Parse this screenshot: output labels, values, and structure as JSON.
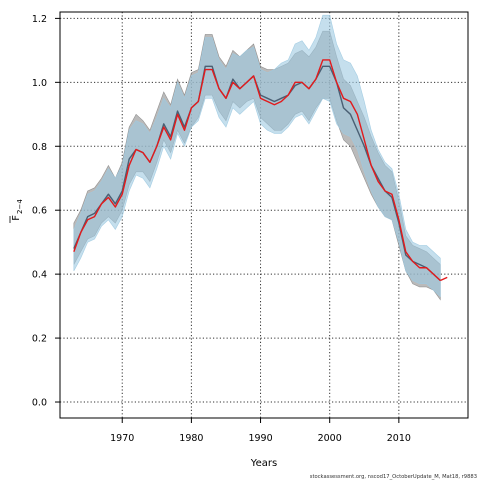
{
  "chart_data": {
    "type": "line",
    "xlabel": "Years",
    "ylabel_main": "F",
    "ylabel_sub": "2−4",
    "xlim": [
      1961,
      2020
    ],
    "ylim": [
      -0.05,
      1.22
    ],
    "grid": true,
    "x_ticks": [
      1970,
      1980,
      1990,
      2000,
      2010
    ],
    "x_tick_labels": [
      "1970",
      "1980",
      "1990",
      "2000",
      "2010"
    ],
    "y_ticks": [
      0.0,
      0.2,
      0.4,
      0.6,
      0.8,
      1.0,
      1.2
    ],
    "y_tick_labels": [
      "0.0",
      "0.2",
      "0.4",
      "0.6",
      "0.8",
      "1.0",
      "1.2"
    ],
    "x": [
      1963,
      1964,
      1965,
      1966,
      1967,
      1968,
      1969,
      1970,
      1971,
      1972,
      1973,
      1974,
      1975,
      1976,
      1977,
      1978,
      1979,
      1980,
      1981,
      1982,
      1983,
      1984,
      1985,
      1986,
      1987,
      1988,
      1989,
      1990,
      1991,
      1992,
      1993,
      1994,
      1995,
      1996,
      1997,
      1998,
      1999,
      2000,
      2001,
      2002,
      2003,
      2004,
      2005,
      2006,
      2007,
      2008,
      2009,
      2010,
      2011,
      2012,
      2013,
      2014,
      2015,
      2016
    ],
    "series": [
      {
        "values": [
          0.48,
          0.53,
          0.58,
          0.59,
          0.62,
          0.65,
          0.62,
          0.66,
          0.76,
          0.79,
          0.78,
          0.75,
          0.8,
          0.87,
          0.83,
          0.91,
          0.86,
          0.92,
          0.94,
          1.05,
          1.05,
          0.98,
          0.95,
          1.01,
          0.98,
          1.0,
          1.02,
          0.96,
          0.95,
          0.94,
          0.95,
          0.96,
          0.99,
          1.0,
          0.98,
          1.01,
          1.05,
          1.05,
          1.0,
          0.92,
          0.9,
          0.85,
          0.8,
          0.74,
          0.7,
          0.66,
          0.64,
          0.56,
          0.46,
          0.44,
          0.43,
          0.42,
          0.4,
          0.38
        ],
        "color": "#4a5f73",
        "band_low": [
          0.43,
          0.47,
          0.51,
          0.52,
          0.56,
          0.58,
          0.56,
          0.6,
          0.68,
          0.72,
          0.72,
          0.69,
          0.75,
          0.82,
          0.78,
          0.85,
          0.81,
          0.86,
          0.89,
          0.96,
          0.96,
          0.91,
          0.88,
          0.94,
          0.92,
          0.94,
          0.95,
          0.89,
          0.87,
          0.85,
          0.85,
          0.87,
          0.9,
          0.91,
          0.88,
          0.92,
          0.95,
          0.95,
          0.88,
          0.82,
          0.8,
          0.75,
          0.7,
          0.65,
          0.61,
          0.58,
          0.57,
          0.49,
          0.41,
          0.37,
          0.36,
          0.36,
          0.35,
          0.32
        ],
        "band_high": [
          0.56,
          0.6,
          0.66,
          0.67,
          0.7,
          0.74,
          0.7,
          0.75,
          0.86,
          0.9,
          0.88,
          0.85,
          0.91,
          0.97,
          0.93,
          1.01,
          0.96,
          1.03,
          1.04,
          1.15,
          1.15,
          1.08,
          1.05,
          1.1,
          1.08,
          1.1,
          1.12,
          1.05,
          1.04,
          1.04,
          1.05,
          1.06,
          1.09,
          1.1,
          1.08,
          1.11,
          1.16,
          1.16,
          1.08,
          1.01,
          0.99,
          0.94,
          0.89,
          0.83,
          0.78,
          0.74,
          0.72,
          0.63,
          0.52,
          0.49,
          0.48,
          0.47,
          0.45,
          0.43
        ],
        "band_color": "#8c8c8c"
      },
      {
        "values": [
          0.47,
          0.53,
          0.57,
          0.58,
          0.62,
          0.64,
          0.61,
          0.65,
          0.74,
          0.79,
          0.78,
          0.75,
          0.8,
          0.86,
          0.82,
          0.9,
          0.85,
          0.92,
          0.94,
          1.04,
          1.04,
          0.98,
          0.95,
          1.0,
          0.98,
          1.0,
          1.02,
          0.95,
          0.94,
          0.93,
          0.94,
          0.96,
          1.0,
          1.0,
          0.98,
          1.01,
          1.07,
          1.07,
          1.0,
          0.95,
          0.94,
          0.9,
          0.82,
          0.74,
          0.69,
          0.66,
          0.65,
          0.57,
          0.47,
          0.44,
          0.42,
          0.42,
          0.4,
          0.38
        ],
        "color": "#e31a1c",
        "band_low": [
          0.41,
          0.45,
          0.5,
          0.51,
          0.55,
          0.57,
          0.54,
          0.58,
          0.66,
          0.71,
          0.7,
          0.67,
          0.73,
          0.8,
          0.76,
          0.84,
          0.8,
          0.86,
          0.88,
          0.95,
          0.95,
          0.89,
          0.86,
          0.92,
          0.9,
          0.92,
          0.94,
          0.87,
          0.85,
          0.84,
          0.84,
          0.86,
          0.89,
          0.9,
          0.87,
          0.91,
          0.95,
          0.94,
          0.87,
          0.84,
          0.83,
          0.79,
          0.72,
          0.66,
          0.61,
          0.58,
          0.57,
          0.5,
          0.41,
          0.38,
          0.37,
          0.37,
          0.35,
          0.33
        ],
        "band_high": [
          0.54,
          0.59,
          0.65,
          0.66,
          0.69,
          0.73,
          0.7,
          0.74,
          0.85,
          0.88,
          0.87,
          0.84,
          0.89,
          0.95,
          0.92,
          1.0,
          0.95,
          1.02,
          1.03,
          1.14,
          1.14,
          1.07,
          1.04,
          1.09,
          1.08,
          1.1,
          1.11,
          1.04,
          1.03,
          1.04,
          1.06,
          1.07,
          1.12,
          1.13,
          1.1,
          1.14,
          1.21,
          1.21,
          1.12,
          1.07,
          1.06,
          1.02,
          0.94,
          0.85,
          0.79,
          0.75,
          0.73,
          0.65,
          0.54,
          0.5,
          0.49,
          0.49,
          0.47,
          0.45
        ],
        "band_color": "#9ecae1"
      },
      {
        "x": [
          2016,
          2017
        ],
        "values": [
          0.38,
          0.39
        ],
        "color": "#e31a1c"
      }
    ],
    "credit": "stockassessment.org, nscod17_OctoberUpdate_M, Mat18, r9883"
  }
}
